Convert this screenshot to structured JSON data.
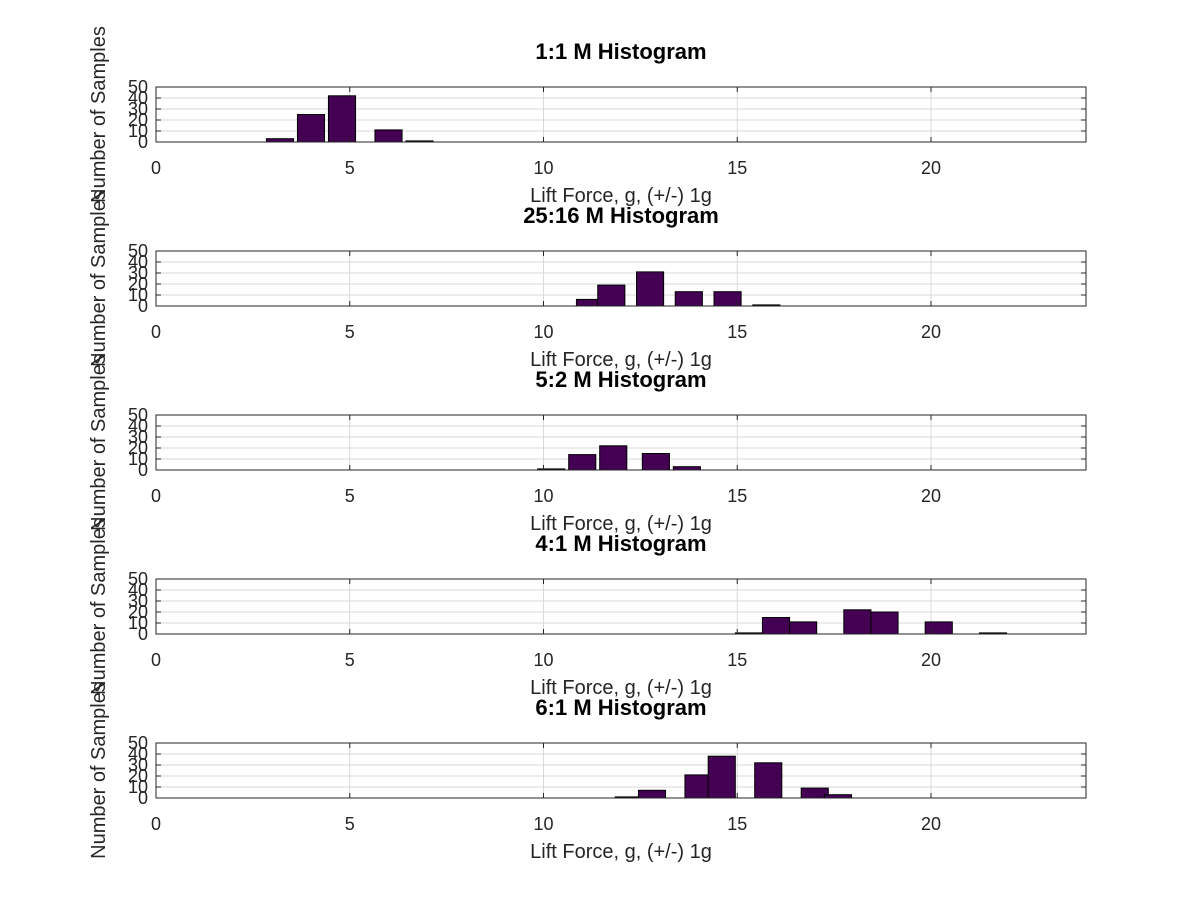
{
  "chart_data": [
    {
      "type": "bar",
      "title": "1:1 M Histogram",
      "xlabel": "Lift Force, g, (+/-) 1g",
      "ylabel": "Number of Samples",
      "xlim": [
        0,
        24
      ],
      "ylim": [
        0,
        50
      ],
      "xticks": [
        "0",
        "5",
        "10",
        "15",
        "20"
      ],
      "yticks": [
        "0",
        "10",
        "20",
        "30",
        "40",
        "50"
      ],
      "grid": true,
      "bar_color": "#440154",
      "bins": [
        {
          "x": 3.2,
          "count": 3
        },
        {
          "x": 4.0,
          "count": 25
        },
        {
          "x": 4.8,
          "count": 42
        },
        {
          "x": 6.0,
          "count": 11
        },
        {
          "x": 6.8,
          "count": 1
        }
      ]
    },
    {
      "type": "bar",
      "title": "25:16 M Histogram",
      "xlabel": "Lift Force, g, (+/-) 1g",
      "ylabel": "Number of Samples",
      "xlim": [
        0,
        24
      ],
      "ylim": [
        0,
        50
      ],
      "xticks": [
        "0",
        "5",
        "10",
        "15",
        "20"
      ],
      "yticks": [
        "0",
        "10",
        "20",
        "30",
        "40",
        "50"
      ],
      "grid": true,
      "bar_color": "#440154",
      "bins": [
        {
          "x": 11.2,
          "count": 6
        },
        {
          "x": 11.75,
          "count": 19
        },
        {
          "x": 12.75,
          "count": 31
        },
        {
          "x": 13.75,
          "count": 13
        },
        {
          "x": 14.75,
          "count": 13
        },
        {
          "x": 15.75,
          "count": 1
        }
      ]
    },
    {
      "type": "bar",
      "title": "5:2 M Histogram",
      "xlabel": "Lift Force, g, (+/-) 1g",
      "ylabel": "Number of Samples",
      "xlim": [
        0,
        24
      ],
      "ylim": [
        0,
        50
      ],
      "xticks": [
        "0",
        "5",
        "10",
        "15",
        "20"
      ],
      "yticks": [
        "0",
        "10",
        "20",
        "30",
        "40",
        "50"
      ],
      "grid": true,
      "bar_color": "#440154",
      "bins": [
        {
          "x": 10.2,
          "count": 1
        },
        {
          "x": 11.0,
          "count": 14
        },
        {
          "x": 11.8,
          "count": 22
        },
        {
          "x": 12.9,
          "count": 15
        },
        {
          "x": 13.7,
          "count": 3
        }
      ]
    },
    {
      "type": "bar",
      "title": "4:1 M Histogram",
      "xlabel": "Lift Force, g, (+/-) 1g",
      "ylabel": "Number of Samples",
      "xlim": [
        0,
        24
      ],
      "ylim": [
        0,
        50
      ],
      "xticks": [
        "0",
        "5",
        "10",
        "15",
        "20"
      ],
      "yticks": [
        "0",
        "10",
        "20",
        "30",
        "40",
        "50"
      ],
      "grid": true,
      "bar_color": "#440154",
      "bins": [
        {
          "x": 15.3,
          "count": 1
        },
        {
          "x": 16.0,
          "count": 15
        },
        {
          "x": 16.7,
          "count": 11
        },
        {
          "x": 18.1,
          "count": 22
        },
        {
          "x": 18.8,
          "count": 20
        },
        {
          "x": 20.2,
          "count": 11
        },
        {
          "x": 21.6,
          "count": 1
        }
      ]
    },
    {
      "type": "bar",
      "title": "6:1 M Histogram",
      "xlabel": "Lift Force, g, (+/-) 1g",
      "ylabel": "Number of Samples",
      "xlim": [
        0,
        24
      ],
      "ylim": [
        0,
        50
      ],
      "xticks": [
        "0",
        "5",
        "10",
        "15",
        "20"
      ],
      "yticks": [
        "0",
        "10",
        "20",
        "30",
        "40",
        "50"
      ],
      "grid": true,
      "bar_color": "#440154",
      "bins": [
        {
          "x": 12.2,
          "count": 1
        },
        {
          "x": 12.8,
          "count": 7
        },
        {
          "x": 14.0,
          "count": 21
        },
        {
          "x": 14.6,
          "count": 38
        },
        {
          "x": 15.8,
          "count": 32
        },
        {
          "x": 17.0,
          "count": 9
        },
        {
          "x": 17.6,
          "count": 3
        }
      ]
    }
  ]
}
